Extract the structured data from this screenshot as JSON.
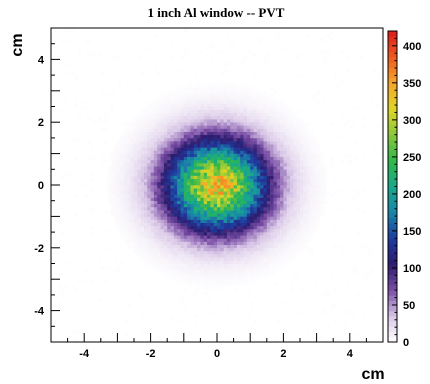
{
  "chart_data": {
    "type": "heatmap",
    "title": "1 inch Al window -- PVT",
    "xlabel": "cm",
    "ylabel": "cm",
    "xlim": [
      -5,
      5
    ],
    "ylim": [
      -5,
      5
    ],
    "xticks": [
      "-4",
      "-2",
      "0",
      "2",
      "4"
    ],
    "yticks": [
      "-4",
      "-2",
      "0",
      "2",
      "4"
    ],
    "xtick_values": [
      -4,
      -2,
      0,
      2,
      4
    ],
    "ytick_values": [
      -4,
      -2,
      0,
      2,
      4
    ],
    "zlim": [
      0,
      420
    ],
    "colorbar_ticks": [
      "0",
      "50",
      "100",
      "150",
      "200",
      "250",
      "300",
      "350",
      "400"
    ],
    "colorbar_values": [
      0,
      50,
      100,
      150,
      200,
      250,
      300,
      350,
      400
    ],
    "distribution": {
      "shape": "2D gaussian",
      "center": [
        0,
        0
      ],
      "sigma_x_cm": 1.05,
      "sigma_y_cm": 1.0,
      "peak_value": 330,
      "support_radius_cm": 3.3
    },
    "palette": [
      "#ffffff",
      "#d8c6e6",
      "#7b4fa6",
      "#2c1c6e",
      "#1f3ca0",
      "#1a85a8",
      "#18a98c",
      "#2fb84a",
      "#88c83c",
      "#e0d623",
      "#f6a52a",
      "#ee5a1e",
      "#dd1b1b"
    ],
    "grid": false,
    "legend": "colorbar-right"
  }
}
